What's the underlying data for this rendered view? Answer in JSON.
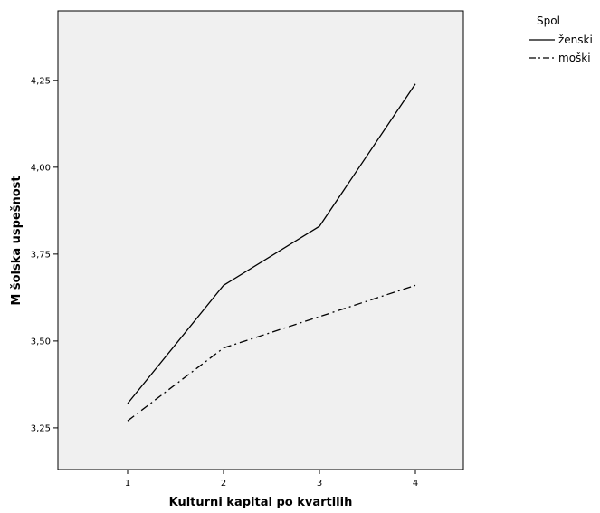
{
  "chart_data": {
    "type": "line",
    "title": "",
    "xlabel": "Kulturni kapital po kvartilih",
    "ylabel": "M šolska uspešnost",
    "categories": [
      "1",
      "2",
      "3",
      "4"
    ],
    "y_ticks": [
      "3,25",
      "3,50",
      "3,75",
      "4,00",
      "4,25"
    ],
    "y_tick_values": [
      3.25,
      3.5,
      3.75,
      4.0,
      4.25
    ],
    "ylim": [
      3.13,
      4.45
    ],
    "grid": false,
    "background_color": "#f0f0f0",
    "legend": {
      "title": "Spol",
      "placement": "top-right-outside"
    },
    "series": [
      {
        "name": "ženski",
        "values": [
          3.32,
          3.66,
          3.83,
          4.24
        ],
        "style": "solid",
        "color": "#000000"
      },
      {
        "name": "moški",
        "values": [
          3.27,
          3.48,
          3.57,
          3.66
        ],
        "style": "dash-dot",
        "color": "#000000"
      }
    ]
  }
}
